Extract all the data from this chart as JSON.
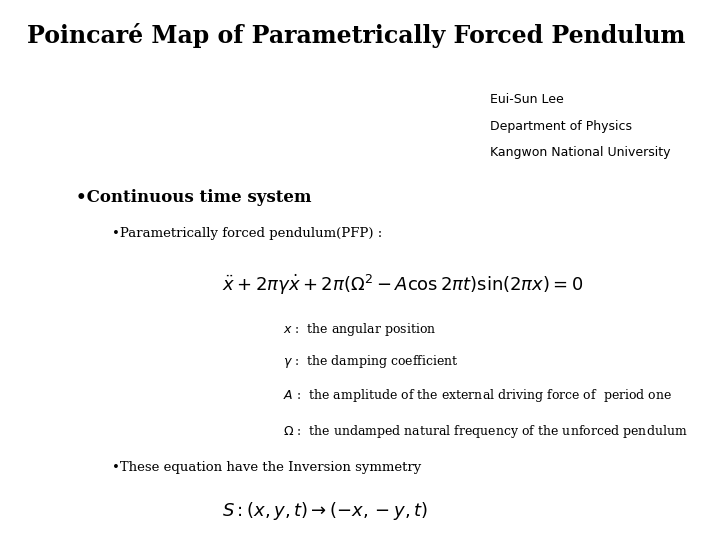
{
  "title": "Poincaré Map of Parametrically Forced Pendulum",
  "author_line1": "Eui-Sun Lee",
  "author_line2": "Department of Physics",
  "author_line3": "Kangwon National University",
  "section1": "•Continuous time system",
  "subsection1": "•Parametrically forced pendulum(PFP) :",
  "section2": "•These equation have the Inversion symmetry",
  "bg_color": "#ffffff",
  "text_color": "#000000",
  "title_fontsize": 17,
  "section_fontsize": 12,
  "subsection_fontsize": 9.5,
  "eq_fontsize": 13,
  "var_fontsize": 9,
  "author_fontsize": 9
}
